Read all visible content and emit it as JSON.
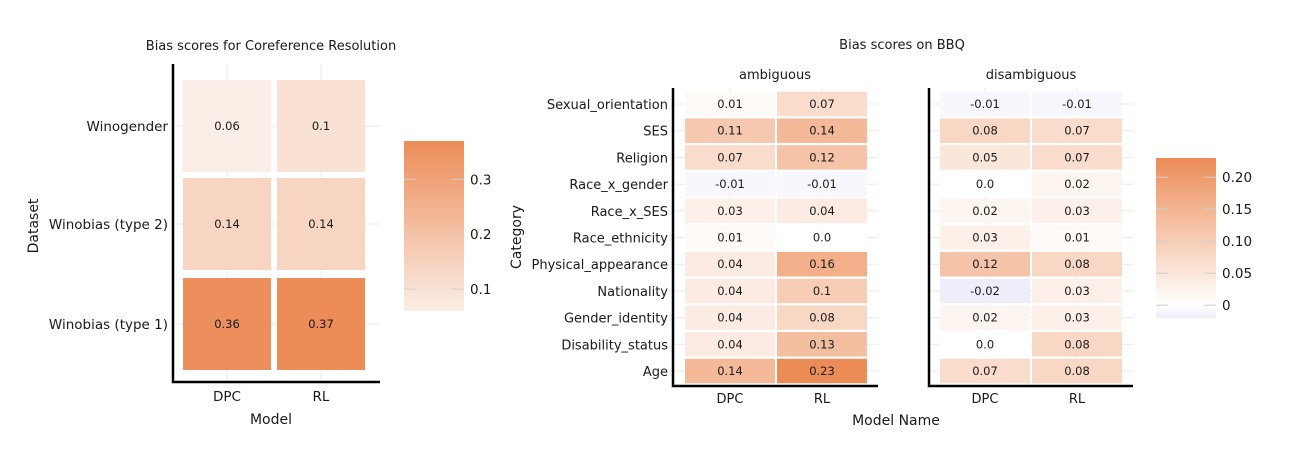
{
  "chart_data": [
    {
      "type": "heatmap",
      "title": "Bias scores for Coreference Resolution",
      "xlabel": "Model",
      "ylabel": "Dataset",
      "x": [
        "DPC",
        "RL"
      ],
      "y": [
        "Winogender",
        "Winobias (type 2)",
        "Winobias (type 1)"
      ],
      "values": [
        [
          0.06,
          0.1
        ],
        [
          0.14,
          0.14
        ],
        [
          0.36,
          0.37
        ]
      ],
      "colorbar": {
        "range": [
          0.06,
          0.37
        ],
        "ticks": [
          0.1,
          0.2,
          0.3
        ],
        "colors": [
          "#fbeee7",
          "#ec8c57"
        ]
      },
      "legend_position": "right"
    },
    {
      "type": "heatmap",
      "title": "Bias scores on BBQ",
      "xlabel": "Model Name",
      "ylabel": "Category",
      "x": [
        "DPC",
        "RL"
      ],
      "y": [
        "Sexual_orientation",
        "SES",
        "Religion",
        "Race_x_gender",
        "Race_x_SES",
        "Race_ethnicity",
        "Physical_appearance",
        "Nationality",
        "Gender_identity",
        "Disability_status",
        "Age"
      ],
      "facets": [
        {
          "name": "ambiguous",
          "values": [
            [
              0.01,
              0.07
            ],
            [
              0.11,
              0.14
            ],
            [
              0.07,
              0.12
            ],
            [
              -0.01,
              -0.01
            ],
            [
              0.03,
              0.04
            ],
            [
              0.01,
              0.0
            ],
            [
              0.04,
              0.16
            ],
            [
              0.04,
              0.1
            ],
            [
              0.04,
              0.08
            ],
            [
              0.04,
              0.13
            ],
            [
              0.14,
              0.23
            ]
          ],
          "labels": [
            [
              "0.01",
              "0.07"
            ],
            [
              "0.11",
              "0.14"
            ],
            [
              "0.07",
              "0.12"
            ],
            [
              "-0.01",
              "-0.01"
            ],
            [
              "0.03",
              "0.04"
            ],
            [
              "0.01",
              "0.0"
            ],
            [
              "0.04",
              "0.16"
            ],
            [
              "0.04",
              "0.1"
            ],
            [
              "0.04",
              "0.08"
            ],
            [
              "0.04",
              "0.13"
            ],
            [
              "0.14",
              "0.23"
            ]
          ]
        },
        {
          "name": "disambiguous",
          "values": [
            [
              -0.01,
              -0.01
            ],
            [
              0.08,
              0.07
            ],
            [
              0.05,
              0.07
            ],
            [
              0.0,
              0.02
            ],
            [
              0.02,
              0.03
            ],
            [
              0.03,
              0.01
            ],
            [
              0.12,
              0.08
            ],
            [
              -0.02,
              0.03
            ],
            [
              0.02,
              0.03
            ],
            [
              0.0,
              0.08
            ],
            [
              0.07,
              0.08
            ]
          ],
          "labels": [
            [
              "-0.01",
              "-0.01"
            ],
            [
              "0.08",
              "0.07"
            ],
            [
              "0.05",
              "0.07"
            ],
            [
              "0.0",
              "0.02"
            ],
            [
              "0.02",
              "0.03"
            ],
            [
              "0.03",
              "0.01"
            ],
            [
              "0.12",
              "0.08"
            ],
            [
              "-0.02",
              "0.03"
            ],
            [
              "0.02",
              "0.03"
            ],
            [
              "0.0",
              "0.08"
            ],
            [
              "0.07",
              "0.08"
            ]
          ]
        }
      ],
      "colorbar": {
        "range": [
          -0.02,
          0.23
        ],
        "ticks": [
          0,
          0.05,
          0.1,
          0.15,
          0.2
        ],
        "tick_labels": [
          "0",
          "0.05",
          "0.10",
          "0.15",
          "0.20"
        ],
        "colors": [
          "#eeeefb",
          "#ffffff",
          "#ec8c57"
        ]
      },
      "legend_position": "right"
    }
  ]
}
